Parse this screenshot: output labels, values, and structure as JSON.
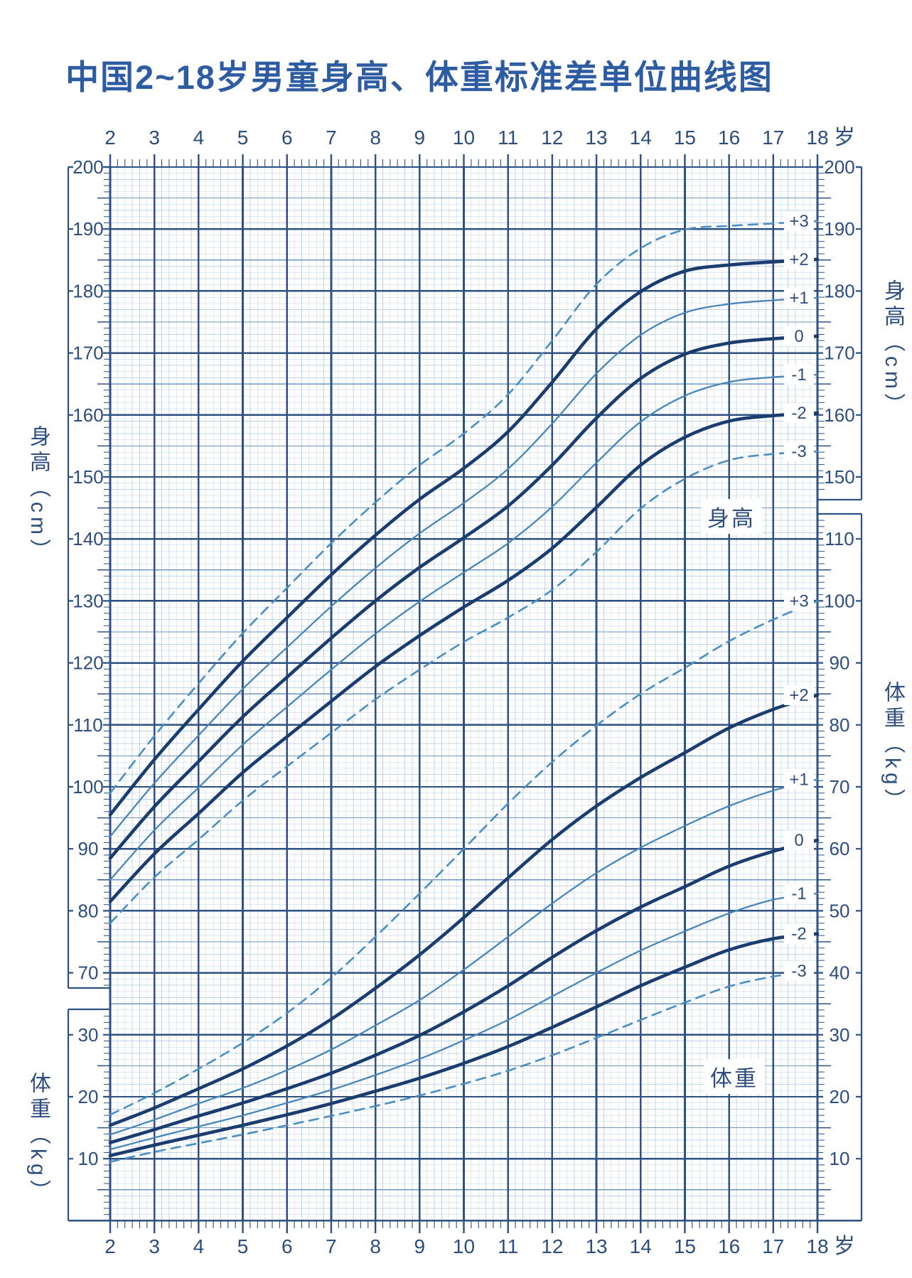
{
  "title": "中国2~18岁男童身高、体重标准差单位曲线图",
  "age_unit_label": "岁",
  "axis_titles": {
    "left_height": "身高（cm）",
    "left_weight": "体重（kg）",
    "right_height": "身高（cm）",
    "right_weight": "体重（kg）"
  },
  "annotations": {
    "height_curves_box": "身高",
    "weight_curves_box": "体重"
  },
  "axes": {
    "ages": [
      2,
      3,
      4,
      5,
      6,
      7,
      8,
      9,
      10,
      11,
      12,
      13,
      14,
      15,
      16,
      17,
      18
    ],
    "left_height_ticks": [
      200,
      190,
      180,
      170,
      160,
      150,
      140,
      130,
      120,
      110,
      100,
      90,
      80,
      70
    ],
    "left_weight_ticks": [
      30,
      20,
      10
    ],
    "right_height_ticks": [
      200,
      190,
      180,
      170,
      160,
      150
    ],
    "right_weight_ticks": [
      110,
      100,
      90,
      80,
      70,
      60,
      50,
      40,
      30,
      20,
      10
    ]
  },
  "chart_data": {
    "type": "line",
    "title": "中国2~18岁男童身高、体重标准差单位曲线图",
    "x": [
      2,
      3,
      4,
      5,
      6,
      7,
      8,
      9,
      10,
      11,
      12,
      13,
      14,
      15,
      16,
      17,
      18
    ],
    "x_unit": "岁",
    "height_unit": "cm",
    "weight_unit": "kg",
    "height_axis_range_shown": [
      70,
      200
    ],
    "weight_axis_range_shown": [
      10,
      110
    ],
    "legend_position": "curve-end-labels-right",
    "grid": true,
    "height_series": [
      {
        "sd": "+3",
        "style": "dashed",
        "values": [
          99.0,
          108.2,
          116.7,
          124.8,
          132.1,
          139.3,
          145.9,
          151.9,
          157.0,
          163.3,
          172.0,
          181.1,
          186.9,
          189.9,
          190.5,
          190.9,
          191.3
        ]
      },
      {
        "sd": "+2",
        "style": "thick",
        "values": [
          95.5,
          104.4,
          112.5,
          120.3,
          127.3,
          134.2,
          140.6,
          146.4,
          151.4,
          157.3,
          165.3,
          173.9,
          179.9,
          183.2,
          184.2,
          184.7,
          185.1
        ]
      },
      {
        "sd": "+1",
        "style": "thin",
        "values": [
          92.0,
          100.6,
          108.3,
          115.8,
          122.5,
          129.1,
          135.3,
          140.9,
          145.8,
          151.3,
          158.6,
          166.7,
          172.9,
          176.5,
          177.9,
          178.5,
          178.9
        ]
      },
      {
        "sd": "0",
        "style": "thick",
        "values": [
          88.5,
          96.8,
          104.1,
          111.3,
          117.7,
          124.0,
          130.0,
          135.4,
          140.2,
          145.3,
          151.9,
          159.5,
          165.9,
          169.8,
          171.6,
          172.3,
          172.7
        ]
      },
      {
        "sd": "-1",
        "style": "thin",
        "values": [
          85.0,
          93.0,
          99.9,
          106.8,
          112.9,
          118.9,
          124.7,
          129.9,
          134.6,
          139.3,
          145.2,
          152.3,
          158.9,
          163.1,
          165.3,
          166.1,
          166.5
        ]
      },
      {
        "sd": "-2",
        "style": "thick",
        "values": [
          81.5,
          89.2,
          95.7,
          102.3,
          108.1,
          113.8,
          119.4,
          124.4,
          129.0,
          133.3,
          138.5,
          145.1,
          151.9,
          156.4,
          159.0,
          159.9,
          160.3
        ]
      },
      {
        "sd": "-3",
        "style": "dashed",
        "values": [
          78.0,
          85.4,
          91.5,
          97.8,
          103.3,
          108.7,
          114.1,
          118.9,
          123.4,
          127.3,
          131.8,
          137.9,
          144.9,
          149.7,
          152.7,
          153.7,
          154.1
        ]
      }
    ],
    "weight_series": [
      {
        "sd": "+3",
        "style": "dashed",
        "values": [
          17.1,
          20.6,
          24.5,
          28.7,
          33.5,
          39.2,
          45.8,
          52.8,
          60.0,
          67.3,
          74.0,
          79.9,
          85.0,
          89.2,
          93.5,
          97.0,
          100.0
        ]
      },
      {
        "sd": "+2",
        "style": "thick",
        "values": [
          15.4,
          18.2,
          21.3,
          24.5,
          28.2,
          32.5,
          37.5,
          42.9,
          48.9,
          55.3,
          61.5,
          66.9,
          71.5,
          75.5,
          79.5,
          82.5,
          84.8
        ]
      },
      {
        "sd": "+1",
        "style": "thin",
        "values": [
          13.9,
          16.3,
          18.9,
          21.4,
          24.3,
          27.6,
          31.5,
          35.6,
          40.5,
          45.8,
          51.2,
          56.1,
          60.2,
          63.7,
          66.9,
          69.4,
          71.2
        ]
      },
      {
        "sd": "0",
        "style": "thick",
        "values": [
          12.6,
          14.7,
          16.9,
          19.0,
          21.3,
          23.8,
          26.7,
          29.9,
          33.7,
          37.9,
          42.5,
          46.8,
          50.6,
          53.9,
          57.2,
          59.6,
          61.4
        ]
      },
      {
        "sd": "-1",
        "style": "thin",
        "values": [
          11.5,
          13.4,
          15.2,
          17.0,
          19.0,
          21.1,
          23.5,
          26.1,
          29.1,
          32.4,
          36.2,
          40.0,
          43.6,
          46.7,
          49.6,
          51.8,
          52.8
        ]
      },
      {
        "sd": "-2",
        "style": "thick",
        "values": [
          10.5,
          12.2,
          13.8,
          15.4,
          17.1,
          18.9,
          20.9,
          23.0,
          25.4,
          28.1,
          31.2,
          34.5,
          37.9,
          40.9,
          43.7,
          45.5,
          46.3
        ]
      },
      {
        "sd": "-3",
        "style": "dashed",
        "values": [
          9.5,
          11.1,
          12.5,
          13.9,
          15.4,
          16.9,
          18.5,
          20.2,
          22.1,
          24.2,
          26.7,
          29.5,
          32.4,
          35.2,
          37.8,
          39.4,
          40.3
        ]
      }
    ]
  },
  "colors": {
    "title": "#2e5ca3",
    "major_grid": "#2c5182",
    "medium_grid": "#6f97c0",
    "fine_grid": "#bfd4e8",
    "curve_thick": "#1b3c6e",
    "curve_thin": "#4886ba",
    "curve_dashed": "#4a8ec2",
    "tick_text": "#2c4d7e",
    "background": "#ffffff"
  }
}
